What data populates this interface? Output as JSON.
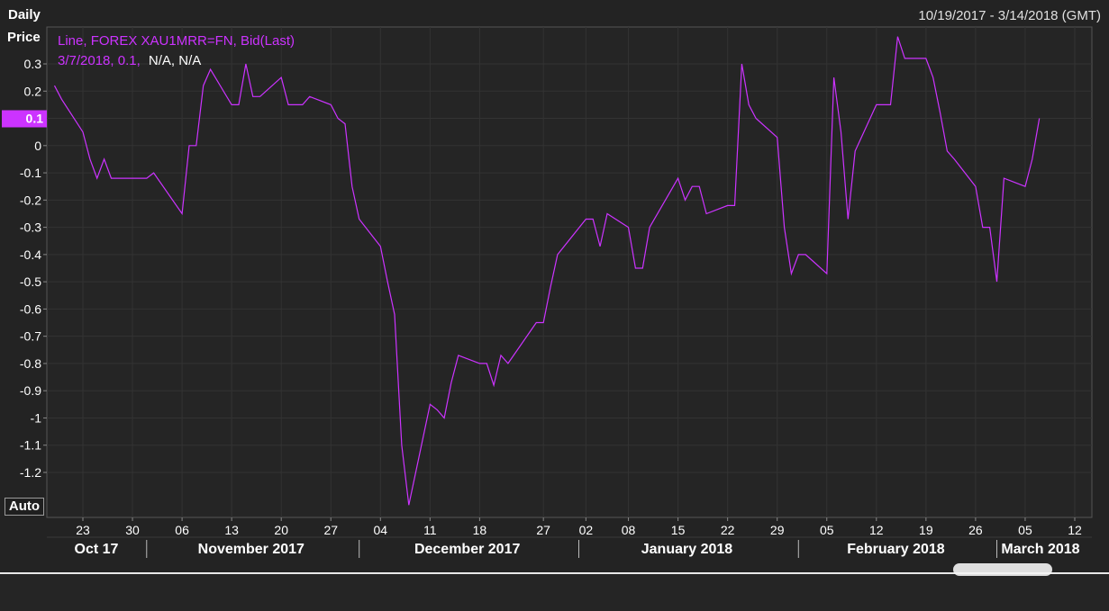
{
  "header": {
    "frequency": "Daily",
    "date_range": "10/19/2017 - 3/14/2018 (GMT)",
    "y_axis_title": "Price"
  },
  "legend": {
    "series_line": "Line, FOREX XAU1MRR=FN, Bid(Last)",
    "readout_main": "3/7/2018, 0.1,",
    "readout_na": "N/A, N/A"
  },
  "current_value_label": "0.1",
  "auto_button": "Auto",
  "colors": {
    "series": "#cc33ff",
    "background": "#232323",
    "grid": "#3a3a3a",
    "text": "#ffffff"
  },
  "chart_data": {
    "type": "line",
    "title": "",
    "xlabel": "",
    "ylabel": "Price",
    "ylim": [
      -1.3,
      0.35
    ],
    "grid": true,
    "y_ticks": [
      0.3,
      0.2,
      0.1,
      0,
      -0.1,
      -0.2,
      -0.3,
      -0.4,
      -0.5,
      -0.6,
      -0.7,
      -0.8,
      -0.9,
      -1,
      -1.1,
      -1.2
    ],
    "y_tick_labels": [
      "0.3",
      "0.2",
      "0.1",
      "0",
      "-0.1",
      "-0.2",
      "-0.3",
      "-0.4",
      "-0.5",
      "-0.6",
      "-0.7",
      "-0.8",
      "-0.9",
      "-1",
      "-1.1",
      "-1.2"
    ],
    "x_ticks": [
      {
        "date": "2017-10-23",
        "label": "23"
      },
      {
        "date": "2017-10-30",
        "label": "30"
      },
      {
        "date": "2017-11-06",
        "label": "06"
      },
      {
        "date": "2017-11-13",
        "label": "13"
      },
      {
        "date": "2017-11-20",
        "label": "20"
      },
      {
        "date": "2017-11-27",
        "label": "27"
      },
      {
        "date": "2017-12-04",
        "label": "04"
      },
      {
        "date": "2017-12-11",
        "label": "11"
      },
      {
        "date": "2017-12-18",
        "label": "18"
      },
      {
        "date": "2017-12-27",
        "label": "27"
      },
      {
        "date": "2018-01-02",
        "label": "02"
      },
      {
        "date": "2018-01-08",
        "label": "08"
      },
      {
        "date": "2018-01-15",
        "label": "15"
      },
      {
        "date": "2018-01-22",
        "label": "22"
      },
      {
        "date": "2018-01-29",
        "label": "29"
      },
      {
        "date": "2018-02-05",
        "label": "05"
      },
      {
        "date": "2018-02-12",
        "label": "12"
      },
      {
        "date": "2018-02-19",
        "label": "19"
      },
      {
        "date": "2018-02-26",
        "label": "26"
      },
      {
        "date": "2018-03-05",
        "label": "05"
      },
      {
        "date": "2018-03-12",
        "label": "12"
      }
    ],
    "month_labels": [
      {
        "label": "Oct 17",
        "start": "2017-10-19",
        "end": "2017-10-31"
      },
      {
        "label": "November 2017",
        "start": "2017-11-01",
        "end": "2017-11-30"
      },
      {
        "label": "December 2017",
        "start": "2017-12-01",
        "end": "2017-12-31"
      },
      {
        "label": "January 2018",
        "start": "2018-01-01",
        "end": "2018-01-31"
      },
      {
        "label": "February 2018",
        "start": "2018-02-01",
        "end": "2018-02-28"
      },
      {
        "label": "March 2018",
        "start": "2018-03-01",
        "end": "2018-03-14"
      }
    ],
    "x_range": [
      "2017-10-19",
      "2018-03-14"
    ],
    "series": [
      {
        "values": [
          {
            "x": "2017-10-19",
            "y": 0.22
          },
          {
            "x": "2017-10-20",
            "y": 0.17
          },
          {
            "x": "2017-10-23",
            "y": 0.05
          },
          {
            "x": "2017-10-24",
            "y": -0.05
          },
          {
            "x": "2017-10-25",
            "y": -0.12
          },
          {
            "x": "2017-10-26",
            "y": -0.05
          },
          {
            "x": "2017-10-27",
            "y": -0.12
          },
          {
            "x": "2017-10-30",
            "y": -0.12
          },
          {
            "x": "2017-10-31",
            "y": -0.12
          },
          {
            "x": "2017-11-01",
            "y": -0.12
          },
          {
            "x": "2017-11-02",
            "y": -0.1
          },
          {
            "x": "2017-11-06",
            "y": -0.25
          },
          {
            "x": "2017-11-07",
            "y": 0.0
          },
          {
            "x": "2017-11-08",
            "y": 0.0
          },
          {
            "x": "2017-11-09",
            "y": 0.22
          },
          {
            "x": "2017-11-10",
            "y": 0.28
          },
          {
            "x": "2017-11-13",
            "y": 0.15
          },
          {
            "x": "2017-11-14",
            "y": 0.15
          },
          {
            "x": "2017-11-15",
            "y": 0.3
          },
          {
            "x": "2017-11-16",
            "y": 0.18
          },
          {
            "x": "2017-11-17",
            "y": 0.18
          },
          {
            "x": "2017-11-20",
            "y": 0.25
          },
          {
            "x": "2017-11-21",
            "y": 0.15
          },
          {
            "x": "2017-11-22",
            "y": 0.15
          },
          {
            "x": "2017-11-23",
            "y": 0.15
          },
          {
            "x": "2017-11-24",
            "y": 0.18
          },
          {
            "x": "2017-11-27",
            "y": 0.15
          },
          {
            "x": "2017-11-28",
            "y": 0.1
          },
          {
            "x": "2017-11-29",
            "y": 0.08
          },
          {
            "x": "2017-11-30",
            "y": -0.15
          },
          {
            "x": "2017-12-01",
            "y": -0.27
          },
          {
            "x": "2017-12-04",
            "y": -0.37
          },
          {
            "x": "2017-12-05",
            "y": -0.5
          },
          {
            "x": "2017-12-06",
            "y": -0.62
          },
          {
            "x": "2017-12-07",
            "y": -1.1
          },
          {
            "x": "2017-12-08",
            "y": -1.32
          },
          {
            "x": "2017-12-11",
            "y": -0.95
          },
          {
            "x": "2017-12-12",
            "y": -0.97
          },
          {
            "x": "2017-12-13",
            "y": -1.0
          },
          {
            "x": "2017-12-14",
            "y": -0.87
          },
          {
            "x": "2017-12-15",
            "y": -0.77
          },
          {
            "x": "2017-12-18",
            "y": -0.8
          },
          {
            "x": "2017-12-19",
            "y": -0.8
          },
          {
            "x": "2017-12-20",
            "y": -0.88
          },
          {
            "x": "2017-12-21",
            "y": -0.77
          },
          {
            "x": "2017-12-22",
            "y": -0.8
          },
          {
            "x": "2017-12-26",
            "y": -0.65
          },
          {
            "x": "2017-12-27",
            "y": -0.65
          },
          {
            "x": "2017-12-28",
            "y": -0.52
          },
          {
            "x": "2017-12-29",
            "y": -0.4
          },
          {
            "x": "2018-01-02",
            "y": -0.27
          },
          {
            "x": "2018-01-03",
            "y": -0.27
          },
          {
            "x": "2018-01-04",
            "y": -0.37
          },
          {
            "x": "2018-01-05",
            "y": -0.25
          },
          {
            "x": "2018-01-08",
            "y": -0.3
          },
          {
            "x": "2018-01-09",
            "y": -0.45
          },
          {
            "x": "2018-01-10",
            "y": -0.45
          },
          {
            "x": "2018-01-11",
            "y": -0.3
          },
          {
            "x": "2018-01-15",
            "y": -0.12
          },
          {
            "x": "2018-01-16",
            "y": -0.2
          },
          {
            "x": "2018-01-17",
            "y": -0.15
          },
          {
            "x": "2018-01-18",
            "y": -0.15
          },
          {
            "x": "2018-01-19",
            "y": -0.25
          },
          {
            "x": "2018-01-22",
            "y": -0.22
          },
          {
            "x": "2018-01-23",
            "y": -0.22
          },
          {
            "x": "2018-01-24",
            "y": 0.3
          },
          {
            "x": "2018-01-25",
            "y": 0.15
          },
          {
            "x": "2018-01-26",
            "y": 0.1
          },
          {
            "x": "2018-01-29",
            "y": 0.03
          },
          {
            "x": "2018-01-30",
            "y": -0.3
          },
          {
            "x": "2018-01-31",
            "y": -0.47
          },
          {
            "x": "2018-02-01",
            "y": -0.4
          },
          {
            "x": "2018-02-02",
            "y": -0.4
          },
          {
            "x": "2018-02-05",
            "y": -0.47
          },
          {
            "x": "2018-02-06",
            "y": 0.25
          },
          {
            "x": "2018-02-07",
            "y": 0.05
          },
          {
            "x": "2018-02-08",
            "y": -0.27
          },
          {
            "x": "2018-02-09",
            "y": -0.02
          },
          {
            "x": "2018-02-12",
            "y": 0.15
          },
          {
            "x": "2018-02-13",
            "y": 0.15
          },
          {
            "x": "2018-02-14",
            "y": 0.15
          },
          {
            "x": "2018-02-15",
            "y": 0.4
          },
          {
            "x": "2018-02-16",
            "y": 0.32
          },
          {
            "x": "2018-02-19",
            "y": 0.32
          },
          {
            "x": "2018-02-20",
            "y": 0.25
          },
          {
            "x": "2018-02-21",
            "y": 0.12
          },
          {
            "x": "2018-02-22",
            "y": -0.02
          },
          {
            "x": "2018-02-23",
            "y": -0.05
          },
          {
            "x": "2018-02-26",
            "y": -0.15
          },
          {
            "x": "2018-02-27",
            "y": -0.3
          },
          {
            "x": "2018-02-28",
            "y": -0.3
          },
          {
            "x": "2018-03-01",
            "y": -0.5
          },
          {
            "x": "2018-03-02",
            "y": -0.12
          },
          {
            "x": "2018-03-05",
            "y": -0.15
          },
          {
            "x": "2018-03-06",
            "y": -0.05
          },
          {
            "x": "2018-03-07",
            "y": 0.1
          }
        ]
      }
    ]
  }
}
